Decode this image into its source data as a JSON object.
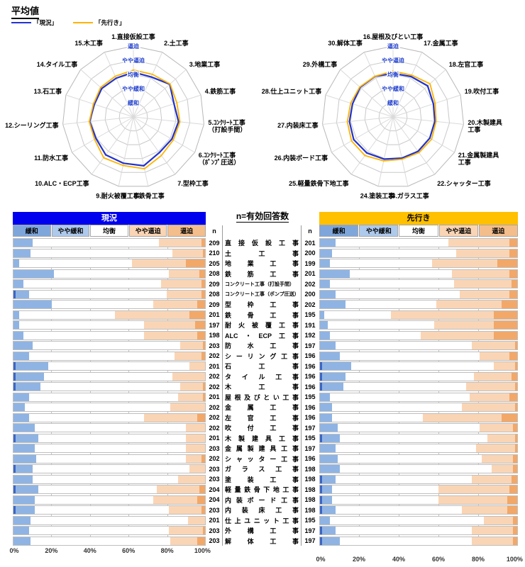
{
  "page_title": "平均値",
  "radar_legend": {
    "current": "「現況」",
    "outlook": "「先行き」"
  },
  "scale_labels": [
    "緩和",
    "やや緩和",
    "均衡",
    "やや逼迫",
    "逼迫"
  ],
  "middle": {
    "title": "n=有効回答数",
    "n_header": "n"
  },
  "axis_ticks": [
    "0%",
    "20%",
    "40%",
    "60%",
    "80%",
    "100%"
  ],
  "colors": {
    "current_line": "#2233CC",
    "outlook_line": "#FFB300",
    "header_current_bg": "#0000EE",
    "header_current_text": "#FFFFFF",
    "header_outlook_bg": "#FFC000",
    "header_outlook_text": "#000000",
    "scale_cells": [
      "#7EA6DB",
      "#ADC9EC",
      "#FFFFFF",
      "#FAD5B5",
      "#F4BE8C"
    ],
    "bar_segments": [
      "#3B66C4",
      "#8FB4E3",
      "#FFFFFF",
      "#FAD5B5",
      "#F2A869"
    ],
    "radar_grid": "#C8C8C8",
    "radar_spoke": "#DADADA",
    "ring_label": "#1F3ECC"
  },
  "trades": [
    "直接仮設工事",
    "土工事",
    "地業工事",
    "鉄筋工事",
    "コンクリート工事（打設手間）",
    "コンクリート工事（ポンプ圧送）",
    "型枠工事",
    "鉄骨工事",
    "耐火被覆工事",
    "ALC・ECP工事",
    "防水工事",
    "シーリング工事",
    "石工事",
    "タイル工事",
    "木工事",
    "屋根及びとい工事",
    "金属工事",
    "左官工事",
    "吹付工事",
    "木製建具工事",
    "金属製建具工事",
    "シャッター工事",
    "ガラス工事",
    "塗装工事",
    "軽量鉄骨下地工事",
    "内装ボード工事",
    "内装床工事",
    "仕上ユニット工事",
    "外構工事",
    "解体工事"
  ],
  "chart_data": [
    {
      "id": "radar-1-15",
      "type": "radar",
      "rmax": 5,
      "ring_labels": [
        "緩和",
        "やや緩和",
        "均衡",
        "やや逼迫",
        "逼迫"
      ],
      "axes": [
        "1.直接仮設工事",
        "2.土工事",
        "3.地業工事",
        "4.鉄筋工事",
        "5.ｺﾝｸﾘｰﾄ工事\n（打設手間）",
        "6.ｺﾝｸﾘｰﾄ工事\n（ﾎﾟﾝﾌﾟ圧送）",
        "7.型枠工事",
        "8.鉄骨工事",
        "9.耐火被覆工事",
        "10.ALC・ECP工事",
        "11.防水工事",
        "12.シーリング工事",
        "13.石工事",
        "14.タイル工事",
        "15.木工事"
      ],
      "series": [
        {
          "name": "現況",
          "values": [
            3.16,
            3.09,
            3.45,
            3.01,
            3.2,
            3.13,
            3.11,
            3.52,
            3.34,
            3.31,
            3.04,
            3.1,
            2.89,
            3.0,
            2.99
          ]
        },
        {
          "name": "先行き",
          "values": [
            3.31,
            3.29,
            3.48,
            3.22,
            3.3,
            3.25,
            3.36,
            3.74,
            3.5,
            3.56,
            3.16,
            3.13,
            2.96,
            3.11,
            3.14
          ]
        }
      ]
    },
    {
      "id": "radar-16-30",
      "type": "radar",
      "rmax": 5,
      "ring_labels": [
        "緩和",
        "やや緩和",
        "均衡",
        "やや逼迫",
        "逼迫"
      ],
      "axes": [
        "16.屋根及びとい工事",
        "17.金属工事",
        "18.左官工事",
        "19.吹付工事",
        "20.木製建具\n工事",
        "21.金属製建具\n工事",
        "22.シャッター工事",
        "23.ガラス工事",
        "24.塗装工事",
        "25.軽量鉄骨下地工事",
        "26.内装ボード工事",
        "27.内装床工事",
        "28.仕上ユニット工事",
        "29.外構工事",
        "30.解体工事"
      ],
      "series": [
        {
          "name": "現況",
          "values": [
            3.07,
            3.12,
            3.28,
            2.99,
            2.96,
            2.99,
            3.0,
            2.97,
            3.04,
            3.14,
            3.2,
            3.09,
            3.0,
            3.12,
            3.13
          ]
        },
        {
          "name": "先行き",
          "values": [
            3.23,
            3.23,
            3.5,
            3.12,
            3.05,
            3.14,
            3.11,
            3.05,
            3.17,
            3.37,
            3.38,
            3.24,
            3.14,
            3.16,
            3.14
          ]
        }
      ]
    },
    {
      "id": "bars-current",
      "type": "bar",
      "title": "現況",
      "stack_labels": [
        "緩和",
        "やや緩和",
        "均衡",
        "やや逼迫",
        "逼迫"
      ],
      "xlim": [
        0,
        100
      ],
      "n": [
        209,
        210,
        205,
        208,
        209,
        208,
        209,
        201,
        197,
        198,
        203,
        202,
        201,
        202,
        202,
        201,
        202,
        202,
        202,
        201,
        203,
        202,
        203,
        203,
        204,
        204,
        203,
        201,
        203,
        203
      ],
      "rows": [
        [
          0,
          10,
          66,
          22,
          2
        ],
        [
          0,
          9,
          74,
          16,
          1
        ],
        [
          0,
          3,
          59,
          28,
          10
        ],
        [
          0,
          21,
          60,
          16,
          3
        ],
        [
          0,
          5,
          72,
          21,
          2
        ],
        [
          1,
          7,
          72,
          18,
          2
        ],
        [
          0,
          20,
          53,
          23,
          4
        ],
        [
          0,
          3,
          50,
          39,
          8
        ],
        [
          0,
          3,
          65,
          27,
          5
        ],
        [
          0,
          5,
          63,
          28,
          4
        ],
        [
          0,
          10,
          77,
          12,
          1
        ],
        [
          0,
          8,
          76,
          14,
          2
        ],
        [
          1,
          17,
          74,
          8,
          0
        ],
        [
          1,
          15,
          67,
          17,
          0
        ],
        [
          1,
          13,
          73,
          12,
          1
        ],
        [
          0,
          8,
          78,
          13,
          1
        ],
        [
          0,
          6,
          76,
          18,
          0
        ],
        [
          0,
          8,
          60,
          28,
          4
        ],
        [
          0,
          11,
          79,
          10,
          0
        ],
        [
          1,
          12,
          77,
          10,
          0
        ],
        [
          0,
          11,
          79,
          10,
          0
        ],
        [
          0,
          12,
          78,
          8,
          2
        ],
        [
          1,
          9,
          82,
          8,
          0
        ],
        [
          0,
          10,
          76,
          14,
          0
        ],
        [
          1,
          12,
          62,
          22,
          3
        ],
        [
          0,
          11,
          62,
          23,
          4
        ],
        [
          1,
          10,
          70,
          17,
          2
        ],
        [
          0,
          9,
          82,
          9,
          0
        ],
        [
          0,
          8,
          73,
          18,
          1
        ],
        [
          0,
          9,
          73,
          14,
          4
        ]
      ]
    },
    {
      "id": "bars-outlook",
      "type": "bar",
      "title": "先行き",
      "stack_labels": [
        "緩和",
        "やや緩和",
        "均衡",
        "やや逼迫",
        "逼迫"
      ],
      "xlim": [
        0,
        100
      ],
      "n": [
        201,
        200,
        199,
        201,
        202,
        200,
        202,
        195,
        191,
        192,
        197,
        196,
        196,
        196,
        196,
        195,
        196,
        196,
        197,
        195,
        197,
        196,
        198,
        198,
        198,
        198,
        198,
        195,
        197,
        197
      ],
      "rows": [
        [
          0,
          8,
          57,
          31,
          4
        ],
        [
          0,
          6,
          63,
          27,
          4
        ],
        [
          0,
          5,
          52,
          33,
          10
        ],
        [
          0,
          15,
          52,
          29,
          4
        ],
        [
          0,
          5,
          63,
          29,
          3
        ],
        [
          0,
          8,
          63,
          25,
          4
        ],
        [
          0,
          13,
          46,
          33,
          8
        ],
        [
          0,
          2,
          34,
          52,
          12
        ],
        [
          0,
          4,
          54,
          30,
          12
        ],
        [
          0,
          5,
          46,
          37,
          12
        ],
        [
          0,
          8,
          69,
          22,
          1
        ],
        [
          0,
          10,
          71,
          15,
          4
        ],
        [
          1,
          15,
          72,
          11,
          1
        ],
        [
          1,
          12,
          65,
          19,
          3
        ],
        [
          1,
          11,
          62,
          25,
          1
        ],
        [
          0,
          5,
          71,
          20,
          4
        ],
        [
          0,
          6,
          66,
          27,
          1
        ],
        [
          0,
          6,
          46,
          40,
          8
        ],
        [
          0,
          9,
          72,
          17,
          2
        ],
        [
          1,
          9,
          75,
          14,
          1
        ],
        [
          0,
          8,
          71,
          20,
          1
        ],
        [
          0,
          9,
          73,
          16,
          2
        ],
        [
          0,
          10,
          77,
          11,
          2
        ],
        [
          1,
          7,
          69,
          20,
          3
        ],
        [
          1,
          5,
          54,
          36,
          4
        ],
        [
          1,
          5,
          54,
          35,
          5
        ],
        [
          1,
          7,
          64,
          23,
          5
        ],
        [
          0,
          5,
          78,
          15,
          2
        ],
        [
          1,
          7,
          69,
          21,
          2
        ],
        [
          1,
          9,
          67,
          21,
          2
        ]
      ]
    }
  ]
}
